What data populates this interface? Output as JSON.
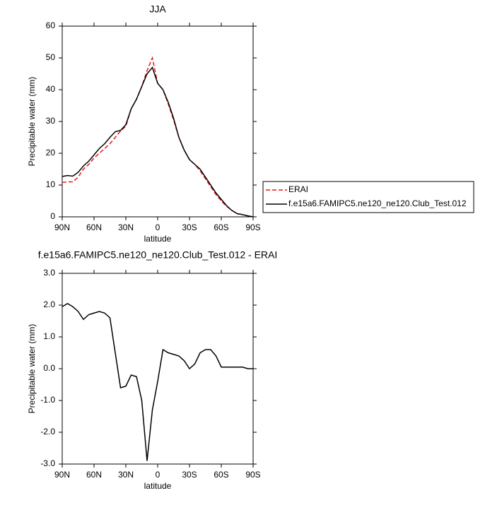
{
  "chart_data": [
    {
      "type": "line",
      "title": "JJA",
      "xlabel": "latitude",
      "ylabel": "Precipitable water (mm)",
      "x": [
        90,
        85,
        80,
        75,
        70,
        65,
        60,
        55,
        50,
        45,
        40,
        35,
        30,
        25,
        20,
        15,
        10,
        5,
        0,
        -5,
        -10,
        -15,
        -20,
        -25,
        -30,
        -35,
        -40,
        -45,
        -50,
        -55,
        -60,
        -65,
        -70,
        -75,
        -80,
        -85,
        -90
      ],
      "xlim": [
        90,
        -90
      ],
      "xticks": [
        {
          "value": 90,
          "label": "90N"
        },
        {
          "value": 60,
          "label": "60N"
        },
        {
          "value": 30,
          "label": "30N"
        },
        0,
        {
          "value": -30,
          "label": "30S"
        },
        {
          "value": -60,
          "label": "60S"
        },
        {
          "value": -90,
          "label": "90S"
        }
      ],
      "ylim": [
        0,
        60
      ],
      "yticks": [
        0,
        10,
        20,
        30,
        40,
        50,
        60
      ],
      "legend": "outside-right",
      "series": [
        {
          "name": "ERAI",
          "color": "#e41a1c",
          "dash": true,
          "values": [
            10.8,
            11,
            11,
            12.5,
            15,
            16.5,
            18.5,
            20,
            21.5,
            23,
            25,
            27,
            28.5,
            34,
            37,
            41,
            46,
            50,
            42,
            40,
            35.5,
            30.5,
            25,
            21,
            18,
            16.5,
            14.5,
            12,
            9.5,
            7,
            5,
            3.3,
            2,
            1,
            0.7,
            0.3,
            0
          ]
        },
        {
          "name": "f.e15a6.FAMIPC5.ne120_ne120.Club_Test.012",
          "color": "#000000",
          "dash": false,
          "values": [
            12.7,
            13,
            12.8,
            14,
            16,
            17.5,
            19.5,
            21.5,
            23,
            25,
            26.8,
            27.2,
            29,
            34,
            37,
            41,
            45,
            47,
            42,
            40,
            36,
            31,
            25,
            21,
            18,
            16.5,
            15,
            12.5,
            10,
            7.5,
            5.5,
            3.5,
            2,
            1,
            0.7,
            0.3,
            0
          ]
        }
      ]
    },
    {
      "type": "line",
      "title": "f.e15a6.FAMIPC5.ne120_ne120.Club_Test.012 - ERAI",
      "xlabel": "latitude",
      "ylabel": "Precipitable water (mm)",
      "x": [
        90,
        85,
        80,
        75,
        70,
        65,
        60,
        55,
        50,
        45,
        40,
        35,
        30,
        25,
        20,
        15,
        10,
        5,
        0,
        -5,
        -10,
        -15,
        -20,
        -25,
        -30,
        -35,
        -40,
        -45,
        -50,
        -55,
        -60,
        -65,
        -70,
        -75,
        -80,
        -85,
        -90
      ],
      "xlim": [
        90,
        -90
      ],
      "xticks": [
        {
          "value": 90,
          "label": "90N"
        },
        {
          "value": 60,
          "label": "60N"
        },
        {
          "value": 30,
          "label": "30N"
        },
        0,
        {
          "value": -30,
          "label": "30S"
        },
        {
          "value": -60,
          "label": "60S"
        },
        {
          "value": -90,
          "label": "90S"
        }
      ],
      "ylim": [
        -3,
        3
      ],
      "yticks": [
        {
          "value": -3,
          "label": "-3.0"
        },
        {
          "value": -2,
          "label": "-2.0"
        },
        {
          "value": -1,
          "label": "-1.0"
        },
        {
          "value": 0,
          "label": "0.0"
        },
        {
          "value": 1,
          "label": "1.0"
        },
        {
          "value": 2,
          "label": "2.0"
        },
        {
          "value": 3,
          "label": "3.0"
        }
      ],
      "series": [
        {
          "color": "#000000",
          "dash": false,
          "values": [
            1.95,
            2.05,
            1.95,
            1.8,
            1.55,
            1.7,
            1.75,
            1.8,
            1.75,
            1.6,
            0.5,
            -0.6,
            -0.55,
            -0.2,
            -0.25,
            -1.0,
            -2.9,
            -1.3,
            -0.4,
            0.6,
            0.5,
            0.45,
            0.4,
            0.25,
            0.0,
            0.15,
            0.5,
            0.6,
            0.6,
            0.4,
            0.05,
            0.05,
            0.05,
            0.05,
            0.05,
            0.0,
            0.0
          ]
        }
      ]
    }
  ]
}
